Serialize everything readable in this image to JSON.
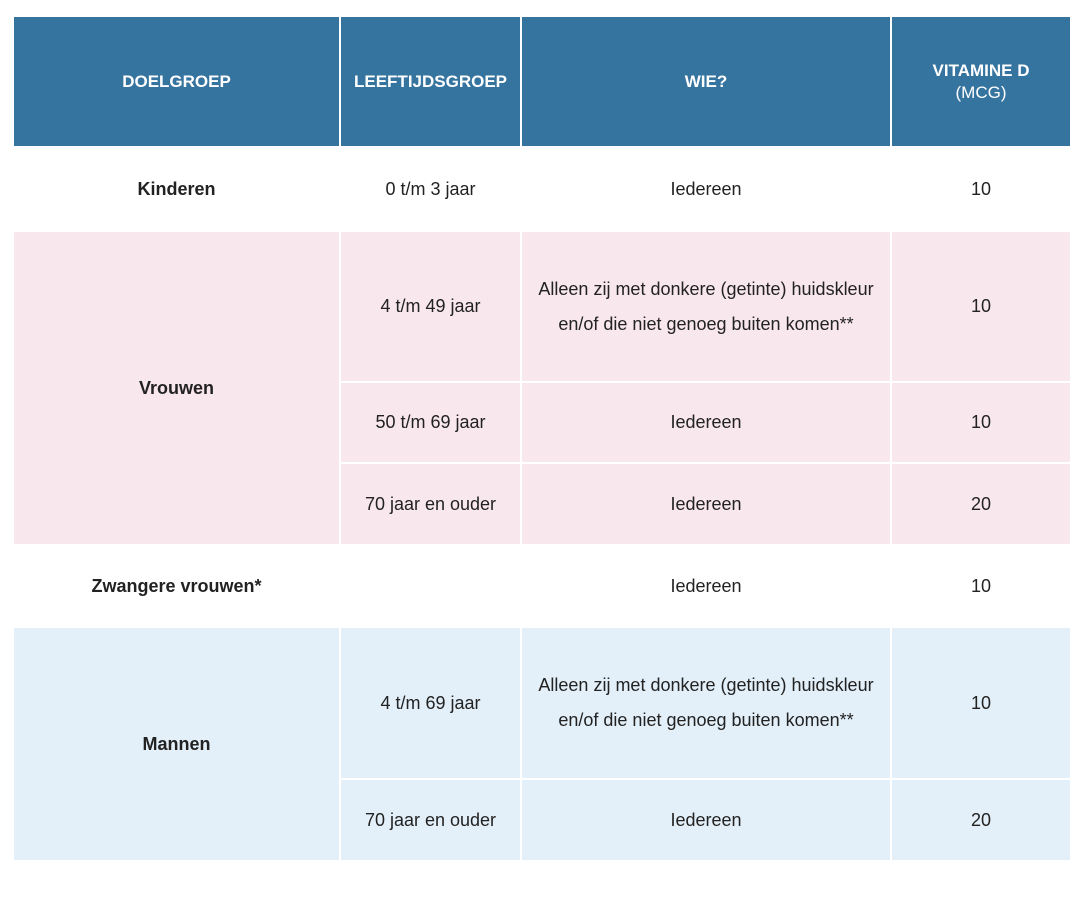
{
  "table": {
    "header": [
      "DOELGROEP",
      "LEEFTIJDSGROEP",
      "WIE?",
      {
        "title": "VITAMINE D",
        "unit": "(MCG)"
      }
    ],
    "groups": [
      {
        "name": "Kinderen",
        "color": "#ffffff",
        "rows": [
          {
            "age": "0 t/m 3 jaar",
            "who": "Iedereen",
            "dose": 10
          }
        ]
      },
      {
        "name": "Vrouwen",
        "color": "#f9e7ee",
        "rows": [
          {
            "age": "4 t/m 49 jaar",
            "who": "Alleen zij met donkere (getinte) huidskleur en/of die niet genoeg buiten komen**",
            "dose": 10
          },
          {
            "age": "50 t/m 69 jaar",
            "who": "Iedereen",
            "dose": 10
          },
          {
            "age": "70 jaar en ouder",
            "who": "Iedereen",
            "dose": 20
          }
        ]
      },
      {
        "name": "Zwangere vrouwen*",
        "color": "#ffffff",
        "rows": [
          {
            "age": null,
            "who": "Iedereen",
            "dose": 10
          }
        ]
      },
      {
        "name": "Mannen",
        "color": "#e3f0f9",
        "rows": [
          {
            "age": "4 t/m 69 jaar",
            "who": "Alleen zij met donkere (getinte) huidskleur en/of die niet genoeg buiten komen**",
            "dose": 10
          },
          {
            "age": "70 jaar en ouder",
            "who": "Iedereen",
            "dose": 20
          }
        ]
      }
    ]
  }
}
